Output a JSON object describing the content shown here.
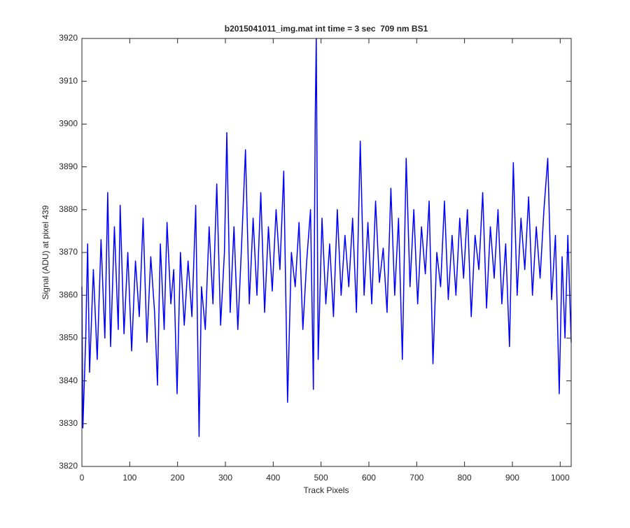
{
  "chart_data": {
    "type": "line",
    "title": "b2015041011_img.mat int time = 3 sec  709 nm BS1",
    "x_label": "Track Pixels",
    "y_label": "Signal (ADU) at pixel 439",
    "x": [
      0,
      2,
      8,
      12,
      16,
      24,
      32,
      40,
      48,
      54,
      60,
      68,
      76,
      80,
      88,
      96,
      104,
      112,
      120,
      128,
      136,
      144,
      152,
      158,
      164,
      172,
      178,
      186,
      192,
      199,
      206,
      214,
      222,
      230,
      238,
      245,
      250,
      258,
      266,
      274,
      282,
      290,
      298,
      303,
      310,
      318,
      326,
      334,
      342,
      350,
      358,
      366,
      374,
      382,
      390,
      398,
      406,
      414,
      422,
      430,
      438,
      446,
      454,
      462,
      470,
      478,
      484,
      488,
      490,
      494,
      502,
      510,
      518,
      526,
      534,
      542,
      550,
      558,
      566,
      574,
      582,
      590,
      598,
      606,
      614,
      622,
      630,
      638,
      646,
      654,
      662,
      670,
      678,
      686,
      694,
      702,
      710,
      718,
      726,
      734,
      742,
      750,
      758,
      766,
      774,
      782,
      790,
      798,
      806,
      814,
      822,
      830,
      838,
      846,
      854,
      862,
      870,
      878,
      886,
      894,
      902,
      910,
      918,
      926,
      934,
      942,
      950,
      958,
      966,
      974,
      982,
      990,
      998,
      1004,
      1010,
      1016,
      1023
    ],
    "series": [
      {
        "name": "Signal",
        "color": "#0000ff",
        "values": [
          3862,
          3829,
          3850,
          3872,
          3842,
          3866,
          3845,
          3873,
          3850,
          3884,
          3848,
          3876,
          3852,
          3881,
          3851,
          3870,
          3847,
          3868,
          3855,
          3878,
          3849,
          3869,
          3856,
          3839,
          3872,
          3852,
          3877,
          3858,
          3866,
          3837,
          3870,
          3853,
          3868,
          3855,
          3881,
          3827,
          3862,
          3852,
          3876,
          3858,
          3886,
          3853,
          3870,
          3898,
          3856,
          3876,
          3852,
          3872,
          3894,
          3858,
          3878,
          3860,
          3884,
          3856,
          3876,
          3861,
          3880,
          3866,
          3889,
          3835,
          3870,
          3862,
          3877,
          3852,
          3868,
          3880,
          3838,
          3903,
          3920,
          3845,
          3878,
          3858,
          3872,
          3855,
          3880,
          3860,
          3874,
          3862,
          3878,
          3856,
          3896,
          3860,
          3877,
          3858,
          3882,
          3863,
          3871,
          3856,
          3885,
          3860,
          3878,
          3845,
          3892,
          3862,
          3880,
          3858,
          3876,
          3865,
          3882,
          3844,
          3870,
          3862,
          3882,
          3859,
          3874,
          3860,
          3878,
          3864,
          3880,
          3855,
          3874,
          3866,
          3884,
          3857,
          3876,
          3864,
          3880,
          3858,
          3872,
          3848,
          3891,
          3860,
          3878,
          3866,
          3883,
          3860,
          3876,
          3864,
          3880,
          3892,
          3859,
          3874,
          3837,
          3869,
          3850,
          3874,
          3849
        ]
      }
    ],
    "xlim": [
      0,
      1023
    ],
    "xticks": [
      0,
      100,
      200,
      300,
      400,
      500,
      600,
      700,
      800,
      900,
      1000
    ],
    "ylim": [
      3820,
      3920
    ],
    "yticks": [
      3820,
      3830,
      3840,
      3850,
      3860,
      3870,
      3880,
      3890,
      3900,
      3910,
      3920
    ],
    "grid": false
  }
}
